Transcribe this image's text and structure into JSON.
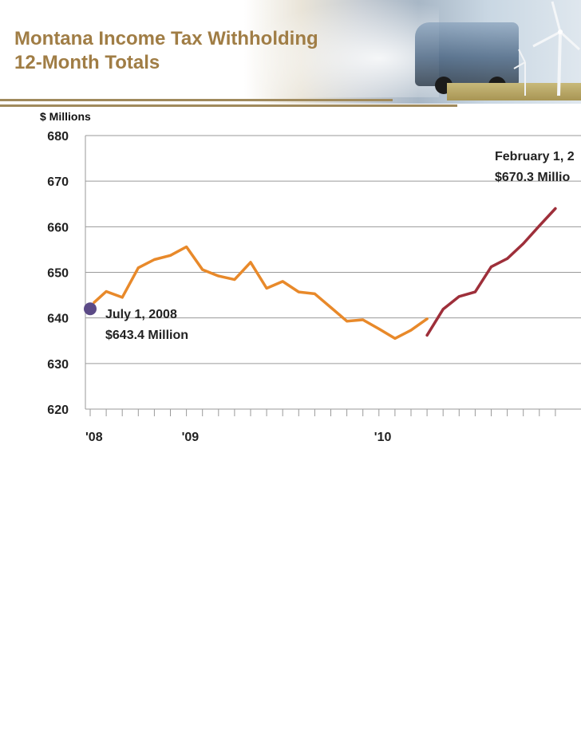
{
  "header": {
    "title_line1": "Montana Income Tax Withholding",
    "title_line2": "12-Month Totals"
  },
  "chart_data": {
    "type": "line",
    "ylabel": "$ Millions",
    "ylim": [
      620,
      680
    ],
    "yticks": [
      620,
      630,
      640,
      650,
      660,
      670,
      680
    ],
    "xtick_labels": [
      {
        "label": "'08",
        "month_index": 0
      },
      {
        "label": "'09",
        "month_index": 6
      },
      {
        "label": "'10",
        "month_index": 18
      }
    ],
    "months_shown": 30,
    "series": [
      {
        "segment": "historical",
        "color": "#e8892a",
        "x": [
          0.25,
          1,
          2,
          3,
          4,
          5,
          6,
          7,
          8,
          9,
          10,
          11,
          12,
          13,
          14,
          15,
          16,
          17,
          18,
          19,
          20,
          21
        ],
        "values": [
          643.4,
          645.8,
          644.5,
          651.0,
          652.8,
          653.7,
          655.6,
          650.6,
          649.2,
          648.4,
          652.2,
          646.5,
          648.0,
          645.7,
          645.3,
          642.3,
          639.3,
          639.6,
          637.6,
          635.5,
          637.3,
          639.8
        ]
      },
      {
        "segment": "recent",
        "color": "#9e2f3a",
        "x": [
          21,
          22,
          23,
          24,
          25,
          26,
          27,
          28,
          29
        ],
        "values": [
          636.2,
          641.9,
          644.7,
          645.7,
          651.2,
          653.0,
          656.3,
          660.2,
          664.0
        ]
      }
    ],
    "annotations": [
      {
        "line1": "July 1, 2008",
        "line2": "$643.4 Million",
        "marker_color": "#5b4a86"
      },
      {
        "line1": "February 1, 2",
        "line2": "$670.3 Millio"
      }
    ]
  }
}
